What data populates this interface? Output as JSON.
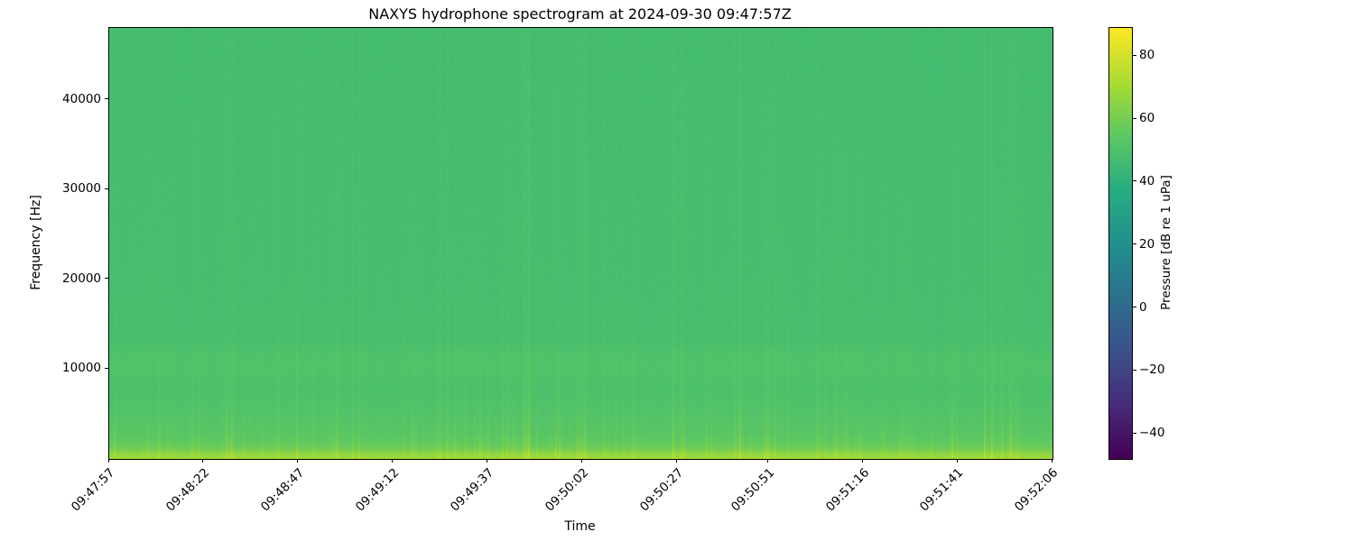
{
  "figure": {
    "title": "NAXYS hydrophone spectrogram at 2024-09-30 09:47:57Z"
  },
  "chart_data": {
    "type": "heatmap",
    "subtype": "spectrogram",
    "title": "NAXYS hydrophone spectrogram at 2024-09-30 09:47:57Z",
    "xlabel": "Time",
    "ylabel": "Frequency [Hz]",
    "x_tick_labels": [
      "09:47:57",
      "09:48:22",
      "09:48:47",
      "09:49:12",
      "09:49:37",
      "09:50:02",
      "09:50:27",
      "09:50:51",
      "09:51:16",
      "09:51:41",
      "09:52:06"
    ],
    "x_tick_seconds": [
      0,
      25,
      50,
      75,
      100,
      125,
      150,
      174,
      199,
      224,
      249
    ],
    "x_range_seconds": [
      0,
      249
    ],
    "y_tick_labels": [
      "10000",
      "20000",
      "30000",
      "40000"
    ],
    "y_ticks_hz": [
      10000,
      20000,
      30000,
      40000
    ],
    "freq_range_hz": [
      0,
      48000
    ],
    "grid": false,
    "legend": false,
    "colorbar": {
      "label": "Pressure [dB re 1 uPa]",
      "tick_values": [
        80,
        60,
        40,
        20,
        0,
        -20,
        -40
      ],
      "vmin": -48,
      "vmax": 89,
      "colormap": "viridis"
    },
    "background_level_db": 47.5,
    "frequency_profile_db": [
      {
        "f": 0,
        "db": 69
      },
      {
        "f": 600,
        "db": 66
      },
      {
        "f": 1200,
        "db": 58
      },
      {
        "f": 2500,
        "db": 54
      },
      {
        "f": 5000,
        "db": 51.5
      },
      {
        "f": 8000,
        "db": 49.5
      },
      {
        "f": 9500,
        "db": 50.8
      },
      {
        "f": 11500,
        "db": 50.8
      },
      {
        "f": 13000,
        "db": 48.5
      },
      {
        "f": 20000,
        "db": 48
      },
      {
        "f": 48000,
        "db": 47.3
      }
    ],
    "transient_stripes": {
      "probability_per_column": 0.16,
      "strong_probability_per_column": 0.012,
      "max_boost_db": 13,
      "low_freq_emphasis": true
    },
    "noise_db": 1.1
  }
}
